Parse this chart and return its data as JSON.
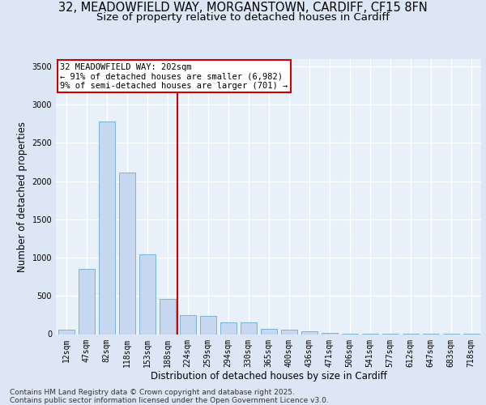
{
  "title_line1": "32, MEADOWFIELD WAY, MORGANSTOWN, CARDIFF, CF15 8FN",
  "title_line2": "Size of property relative to detached houses in Cardiff",
  "xlabel": "Distribution of detached houses by size in Cardiff",
  "ylabel": "Number of detached properties",
  "categories": [
    "12sqm",
    "47sqm",
    "82sqm",
    "118sqm",
    "153sqm",
    "188sqm",
    "224sqm",
    "259sqm",
    "294sqm",
    "330sqm",
    "365sqm",
    "400sqm",
    "436sqm",
    "471sqm",
    "506sqm",
    "541sqm",
    "577sqm",
    "612sqm",
    "647sqm",
    "683sqm",
    "718sqm"
  ],
  "values": [
    55,
    855,
    2780,
    2110,
    1040,
    460,
    245,
    240,
    155,
    155,
    65,
    55,
    35,
    15,
    10,
    5,
    5,
    2,
    2,
    2,
    1
  ],
  "bar_color": "#c5d8f0",
  "bar_edge_color": "#7ab4d8",
  "vline_x": 5.5,
  "vline_color": "#cc0000",
  "annotation_title": "32 MEADOWFIELD WAY: 202sqm",
  "annotation_line1": "← 91% of detached houses are smaller (6,982)",
  "annotation_line2": "9% of semi-detached houses are larger (701) →",
  "annotation_box_color": "#ffffff",
  "annotation_box_edge": "#cc0000",
  "ylim": [
    0,
    3600
  ],
  "yticks": [
    0,
    500,
    1000,
    1500,
    2000,
    2500,
    3000,
    3500
  ],
  "bg_color": "#dce6f5",
  "plot_bg_color": "#e8f0fa",
  "grid_color": "#ffffff",
  "footer_line1": "Contains HM Land Registry data © Crown copyright and database right 2025.",
  "footer_line2": "Contains public sector information licensed under the Open Government Licence v3.0.",
  "title_fontsize": 10.5,
  "subtitle_fontsize": 9.5,
  "axis_label_fontsize": 8.5,
  "tick_fontsize": 7,
  "annotation_fontsize": 7.5,
  "footer_fontsize": 6.5
}
